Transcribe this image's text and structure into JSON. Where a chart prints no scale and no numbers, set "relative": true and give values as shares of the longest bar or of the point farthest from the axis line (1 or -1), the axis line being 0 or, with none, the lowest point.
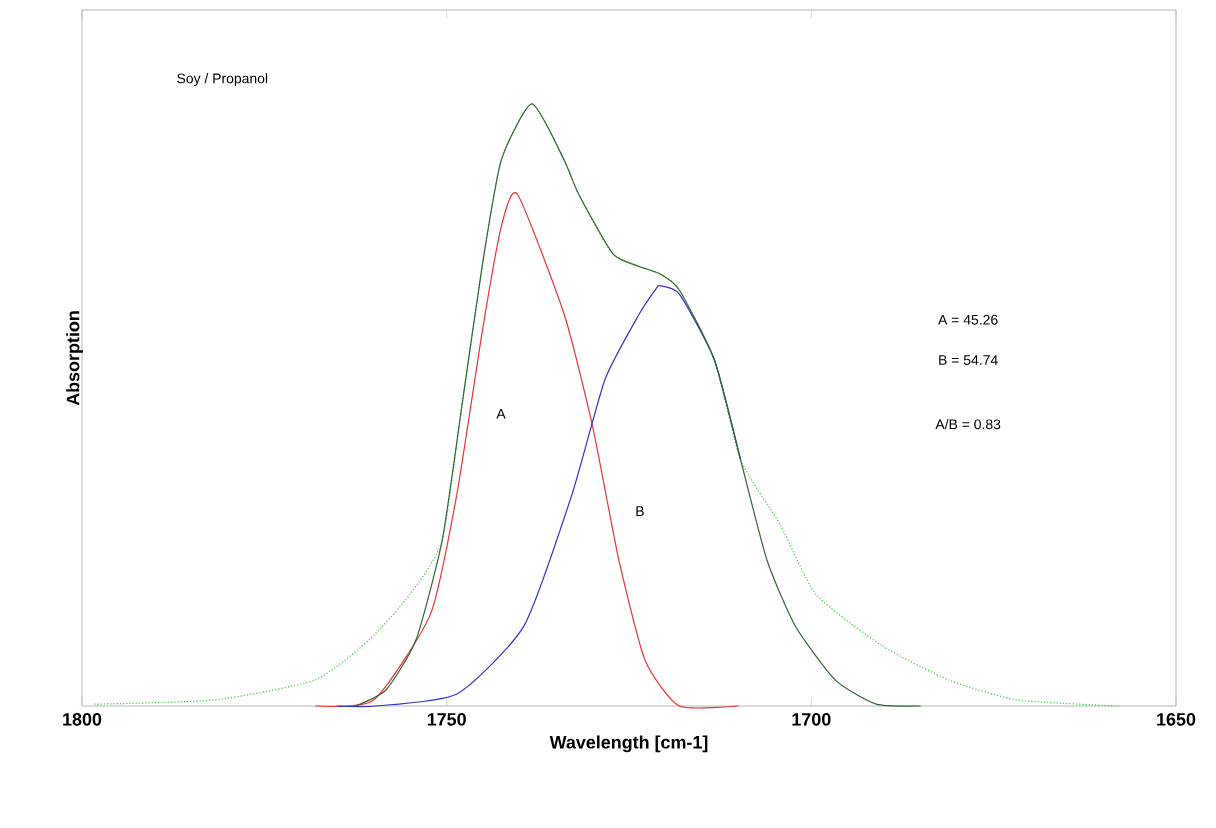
{
  "chart_data": {
    "type": "line",
    "relative": true,
    "xlabel": "Wavelength [cm-1]",
    "ylabel": "Absorption",
    "xlim": [
      1800,
      1650
    ],
    "xticks": [
      1800,
      1750,
      1700,
      1650
    ],
    "grid": false,
    "marker": "none",
    "annotations": [
      "Soy / Propanol",
      "A = 45.26",
      "B = 54.74",
      "A/B = 0.83",
      "A",
      "B"
    ],
    "series": [
      {
        "color": "#33cc33",
        "line_style": "dotted",
        "x": [
          1798.3,
          1781.9,
          1768.1,
          1760.6,
          1755,
          1750.6,
          1747.8,
          1745,
          1742.5,
          1738.3,
          1733.9,
          1731.9,
          1727.2,
          1720.8,
          1718.1,
          1713.3,
          1709.7,
          1704.2,
          1699.4,
          1690.3,
          1681.1,
          1671.7,
          1657.8
        ],
        "values": [
          0.003,
          0.01,
          0.043,
          0.11,
          0.186,
          0.276,
          0.508,
          0.741,
          0.907,
          1,
          0.907,
          0.85,
          0.751,
          0.718,
          0.691,
          0.575,
          0.409,
          0.3,
          0.186,
          0.1,
          0.043,
          0.01,
          0
        ]
      },
      {
        "color": "#ee3333",
        "line_style": "solid",
        "x": [
          1768,
          1760,
          1752.2,
          1748.6,
          1745,
          1742.5,
          1740.3,
          1733.9,
          1730,
          1726.4,
          1722.8,
          1718.1,
          1710
        ],
        "values": [
          0,
          0.01,
          0.153,
          0.352,
          0.631,
          0.797,
          0.85,
          0.651,
          0.465,
          0.243,
          0.076,
          0,
          0
        ]
      },
      {
        "color": "#3333cc",
        "line_style": "solid",
        "x": [
          1765,
          1759.7,
          1748.6,
          1739.4,
          1732.8,
          1728.3,
          1723.6,
          1721.4,
          1720.8,
          1718.1,
          1713.3,
          1709.7
        ],
        "values": [
          0,
          0,
          0.02,
          0.133,
          0.352,
          0.542,
          0.651,
          0.691,
          0.698,
          0.684,
          0.575,
          0.409
        ]
      },
      {
        "color": "#336633",
        "line_style": "solid",
        "x": [
          1762.5,
          1758.3,
          1754.2,
          1750.6,
          1747.8,
          1745,
          1742.5,
          1738.3,
          1733.9,
          1731.9,
          1727.2,
          1723.6,
          1720.8,
          1718.1,
          1713.3,
          1709.7,
          1706.1,
          1702.2,
          1696.7,
          1691.1,
          1685
        ],
        "values": [
          0,
          0.027,
          0.11,
          0.276,
          0.508,
          0.741,
          0.907,
          1,
          0.907,
          0.85,
          0.751,
          0.73,
          0.718,
          0.691,
          0.575,
          0.409,
          0.243,
          0.133,
          0.043,
          0.003,
          0
        ]
      }
    ]
  }
}
